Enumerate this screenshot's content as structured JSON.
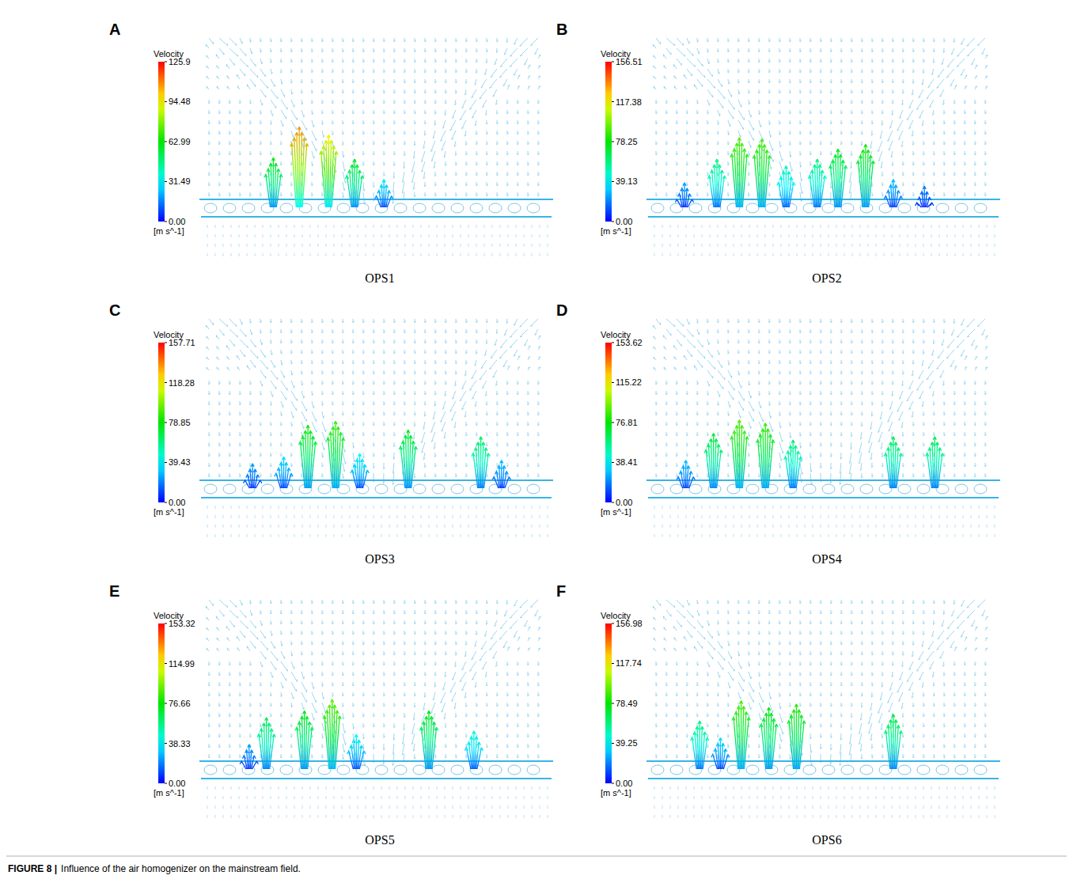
{
  "chart_data": [
    {
      "type": "vector_field",
      "panel": "A",
      "title": "OPS1",
      "colorbar": {
        "label": "Velocity",
        "unit": "[m s^-1]",
        "range": [
          0,
          125.9
        ],
        "ticks": [
          {
            "value": 0,
            "label": "0.00"
          },
          31.49,
          62.99,
          94.48,
          125.9
        ]
      },
      "jets": {
        "x": [
          0.2,
          0.275,
          0.36,
          0.435,
          0.52
        ],
        "values": [
          62,
          108,
          96,
          60,
          30
        ]
      }
    },
    {
      "type": "vector_field",
      "panel": "B",
      "title": "OPS2",
      "colorbar": {
        "label": "Velocity",
        "unit": "[m s^-1]",
        "range": [
          0,
          156.51
        ],
        "ticks": [
          {
            "value": 0,
            "label": "0.00"
          },
          39.13,
          78.25,
          117.38,
          156.51
        ]
      },
      "jets": {
        "x": [
          0.096,
          0.19,
          0.255,
          0.32,
          0.39,
          0.48,
          0.54,
          0.62,
          0.7,
          0.79
        ],
        "values": [
          25,
          60,
          92,
          90,
          50,
          60,
          75,
          82,
          30,
          20
        ]
      }
    },
    {
      "type": "vector_field",
      "panel": "C",
      "title": "OPS3",
      "colorbar": {
        "label": "Velocity",
        "unit": "[m s^-1]",
        "range": [
          0,
          157.71
        ],
        "ticks": [
          {
            "value": 0,
            "label": "0.00"
          },
          39.43,
          78.85,
          118.28,
          157.71
        ]
      },
      "jets": {
        "x": [
          0.14,
          0.23,
          0.3,
          0.38,
          0.45,
          0.59,
          0.8,
          0.86
        ],
        "values": [
          25,
          35,
          82,
          88,
          40,
          75,
          65,
          30
        ]
      }
    },
    {
      "type": "vector_field",
      "panel": "D",
      "title": "OPS4",
      "colorbar": {
        "label": "Velocity",
        "unit": "[m s^-1]",
        "range": [
          0,
          153.62
        ],
        "ticks": [
          {
            "value": 0,
            "label": "0.00"
          },
          38.41,
          76.81,
          115.22,
          153.62
        ]
      },
      "jets": {
        "x": [
          0.1,
          0.18,
          0.255,
          0.33,
          0.41,
          0.7,
          0.82
        ],
        "values": [
          30,
          70,
          90,
          85,
          60,
          65,
          65
        ]
      }
    },
    {
      "type": "vector_field",
      "panel": "E",
      "title": "OPS5",
      "colorbar": {
        "label": "Velocity",
        "unit": "[m s^-1]",
        "range": [
          0,
          153.32
        ],
        "ticks": [
          {
            "value": 0,
            "label": "0.00"
          },
          38.33,
          76.66,
          114.99,
          153.32
        ]
      },
      "jets": {
        "x": [
          0.13,
          0.18,
          0.29,
          0.37,
          0.44,
          0.65,
          0.78
        ],
        "values": [
          25,
          65,
          75,
          92,
          40,
          75,
          45
        ]
      }
    },
    {
      "type": "vector_field",
      "panel": "F",
      "title": "OPS6",
      "colorbar": {
        "label": "Velocity",
        "unit": "[m s^-1]",
        "range": [
          0,
          156.98
        ],
        "ticks": [
          {
            "value": 0,
            "label": "0.00"
          },
          39.25,
          78.49,
          117.74,
          156.98
        ]
      },
      "jets": {
        "x": [
          0.14,
          0.2,
          0.26,
          0.34,
          0.42,
          0.7
        ],
        "values": [
          60,
          35,
          90,
          80,
          85,
          70
        ]
      }
    }
  ],
  "caption": {
    "label": "FIGURE 8 |",
    "text": "Influence of the air homogenizer on the mainstream field."
  }
}
